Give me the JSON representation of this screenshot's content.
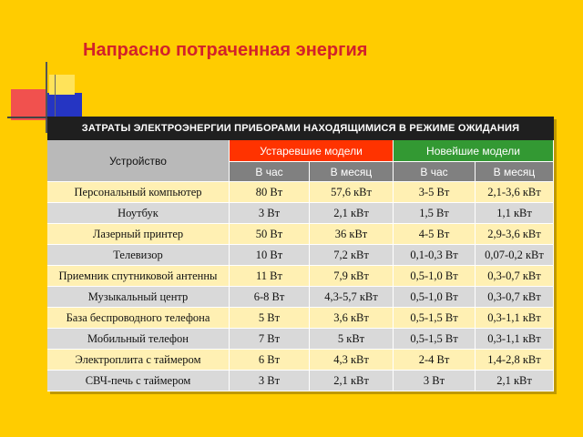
{
  "title": "Напрасно потраченная энергия",
  "table": {
    "banner": "ЗАТРАТЫ ЭЛЕКТРОЭНЕРГИИ ПРИБОРАМИ НАХОДЯЩИМИСЯ В РЕЖИМЕ ОЖИДАНИЯ",
    "device_header": "Устройство",
    "old_group": "Устаревшие модели",
    "new_group": "Новейшие модели",
    "sub_headers": [
      "В час",
      "В месяц",
      "В час",
      "В месяц"
    ],
    "rows": [
      {
        "device": "Персональный компьютер",
        "old_hour": "80 Вт",
        "old_month": "57,6 кВт",
        "new_hour": "3-5 Вт",
        "new_month": "2,1-3,6 кВт"
      },
      {
        "device": "Ноутбук",
        "old_hour": "3 Вт",
        "old_month": "2,1 кВт",
        "new_hour": "1,5 Вт",
        "new_month": "1,1 кВт"
      },
      {
        "device": "Лазерный принтер",
        "old_hour": "50 Вт",
        "old_month": "36 кВт",
        "new_hour": "4-5 Вт",
        "new_month": "2,9-3,6 кВт"
      },
      {
        "device": "Телевизор",
        "old_hour": "10 Вт",
        "old_month": "7,2 кВт",
        "new_hour": "0,1-0,3 Вт",
        "new_month": "0,07-0,2 кВт"
      },
      {
        "device": "Приемник спутниковой антенны",
        "old_hour": "11 Вт",
        "old_month": "7,9 кВт",
        "new_hour": "0,5-1,0 Вт",
        "new_month": "0,3-0,7 кВт"
      },
      {
        "device": "Музыкальный центр",
        "old_hour": "6-8 Вт",
        "old_month": "4,3-5,7 кВт",
        "new_hour": "0,5-1,0 Вт",
        "new_month": "0,3-0,7 кВт"
      },
      {
        "device": "База беспроводного телефона",
        "old_hour": "5 Вт",
        "old_month": "3,6 кВт",
        "new_hour": "0,5-1,5 Вт",
        "new_month": "0,3-1,1 кВт"
      },
      {
        "device": "Мобильный телефон",
        "old_hour": "7 Вт",
        "old_month": "5 кВт",
        "new_hour": "0,5-1,5 Вт",
        "new_month": "0,3-1,1 кВт"
      },
      {
        "device": "Электроплита с таймером",
        "old_hour": "6 Вт",
        "old_month": "4,3 кВт",
        "new_hour": "2-4 Вт",
        "new_month": "1,4-2,8 кВт"
      },
      {
        "device": "СВЧ-печь с таймером",
        "old_hour": "3 Вт",
        "old_month": "2,1 кВт",
        "new_hour": "3 Вт",
        "new_month": "2,1 кВт"
      }
    ]
  }
}
